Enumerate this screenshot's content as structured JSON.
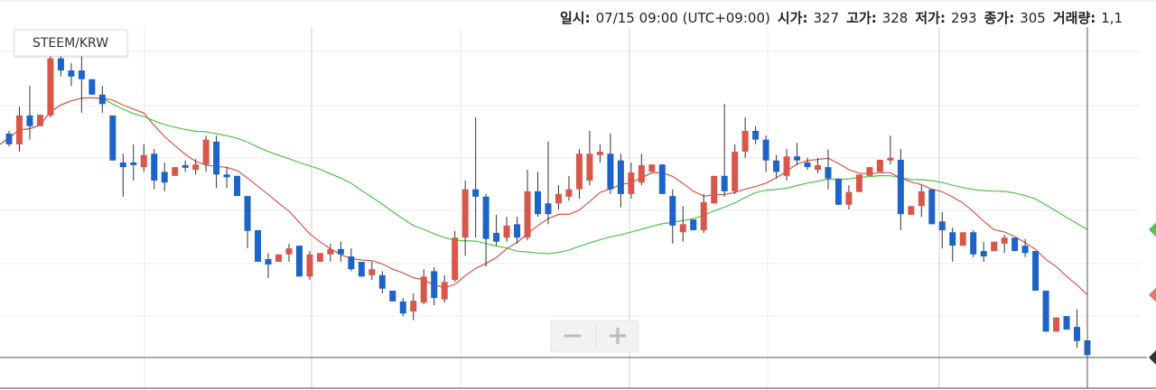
{
  "header": {
    "labels": [
      "일시:",
      "시가:",
      "고가:",
      "저가:",
      "종가:",
      "거래량:"
    ],
    "datetime": "07/15 09:00 (UTC+09:00)",
    "volume": "1,1"
  },
  "chart_data": {
    "type": "candlestick",
    "title": "STEEM/KRW",
    "up_color": "#d9574a",
    "down_color": "#1c64c8",
    "ylim": [
      253,
      834
    ],
    "open": [
      635,
      619,
      662,
      646,
      662,
      747,
      729,
      729,
      716,
      693,
      662,
      592,
      592,
      585,
      605,
      578,
      572,
      588,
      581,
      589,
      623,
      574,
      572,
      542,
      491,
      448,
      444,
      455,
      468,
      422,
      444,
      455,
      463,
      452,
      444,
      424,
      424,
      401,
      385,
      370,
      383,
      430,
      388,
      417,
      480,
      552,
      541,
      487,
      480,
      500,
      480,
      549,
      531,
      531,
      541,
      552,
      565,
      603,
      605,
      595,
      545,
      562,
      578,
      589,
      542,
      488,
      507,
      491,
      531,
      572,
      549,
      608,
      639,
      626,
      595,
      572,
      601,
      592,
      581,
      585,
      568,
      529,
      548,
      572,
      578,
      595,
      596,
      514,
      527,
      552,
      504,
      488,
      468,
      488,
      460,
      460,
      471,
      480,
      468,
      460,
      401,
      340,
      363,
      347,
      327
    ],
    "high": [
      639,
      675,
      706,
      663,
      760,
      773,
      740,
      756,
      716,
      706,
      662,
      605,
      619,
      619,
      612,
      592,
      585,
      595,
      597,
      632,
      632,
      585,
      572,
      542,
      491,
      457,
      455,
      471,
      468,
      460,
      457,
      471,
      474,
      464,
      444,
      444,
      430,
      401,
      390,
      397,
      433,
      436,
      424,
      490,
      565,
      659,
      545,
      514,
      511,
      511,
      581,
      578,
      623,
      558,
      572,
      612,
      639,
      619,
      635,
      605,
      592,
      605,
      589,
      589,
      552,
      527,
      507,
      545,
      572,
      679,
      619,
      659,
      646,
      632,
      603,
      612,
      621,
      599,
      599,
      611,
      568,
      558,
      574,
      585,
      596,
      632,
      612,
      527,
      558,
      552,
      518,
      495,
      488,
      491,
      474,
      474,
      484,
      480,
      478,
      460,
      401,
      361,
      363,
      373,
      328
    ],
    "low": [
      616,
      608,
      626,
      646,
      659,
      720,
      706,
      666,
      693,
      666,
      595,
      541,
      565,
      578,
      552,
      549,
      572,
      578,
      574,
      578,
      554,
      554,
      542,
      464,
      444,
      420,
      444,
      444,
      422,
      417,
      444,
      444,
      444,
      430,
      422,
      417,
      397,
      385,
      363,
      357,
      381,
      379,
      383,
      414,
      453,
      480,
      437,
      468,
      474,
      471,
      476,
      511,
      500,
      522,
      535,
      538,
      558,
      592,
      545,
      525,
      538,
      558,
      578,
      545,
      471,
      474,
      491,
      487,
      531,
      541,
      545,
      599,
      619,
      578,
      568,
      565,
      588,
      581,
      576,
      552,
      529,
      522,
      548,
      572,
      578,
      589,
      491,
      514,
      511,
      500,
      464,
      444,
      468,
      451,
      444,
      460,
      457,
      460,
      451,
      401,
      340,
      340,
      343,
      316,
      293
    ],
    "close": [
      619,
      662,
      646,
      663,
      747,
      729,
      720,
      716,
      693,
      679,
      595,
      585,
      588,
      603,
      565,
      562,
      585,
      584,
      589,
      626,
      574,
      570,
      542,
      490,
      444,
      440,
      455,
      464,
      422,
      455,
      457,
      463,
      455,
      433,
      422,
      433,
      404,
      385,
      367,
      386,
      422,
      390,
      414,
      480,
      552,
      541,
      478,
      474,
      498,
      480,
      549,
      515,
      515,
      545,
      552,
      605,
      605,
      608,
      552,
      545,
      577,
      588,
      589,
      545,
      498,
      500,
      491,
      533,
      572,
      549,
      608,
      639,
      626,
      595,
      578,
      601,
      595,
      585,
      588,
      568,
      529,
      548,
      574,
      585,
      596,
      599,
      515,
      527,
      549,
      500,
      491,
      468,
      488,
      455,
      452,
      474,
      480,
      460,
      457,
      401,
      340,
      361,
      343,
      326,
      305
    ]
  }
}
